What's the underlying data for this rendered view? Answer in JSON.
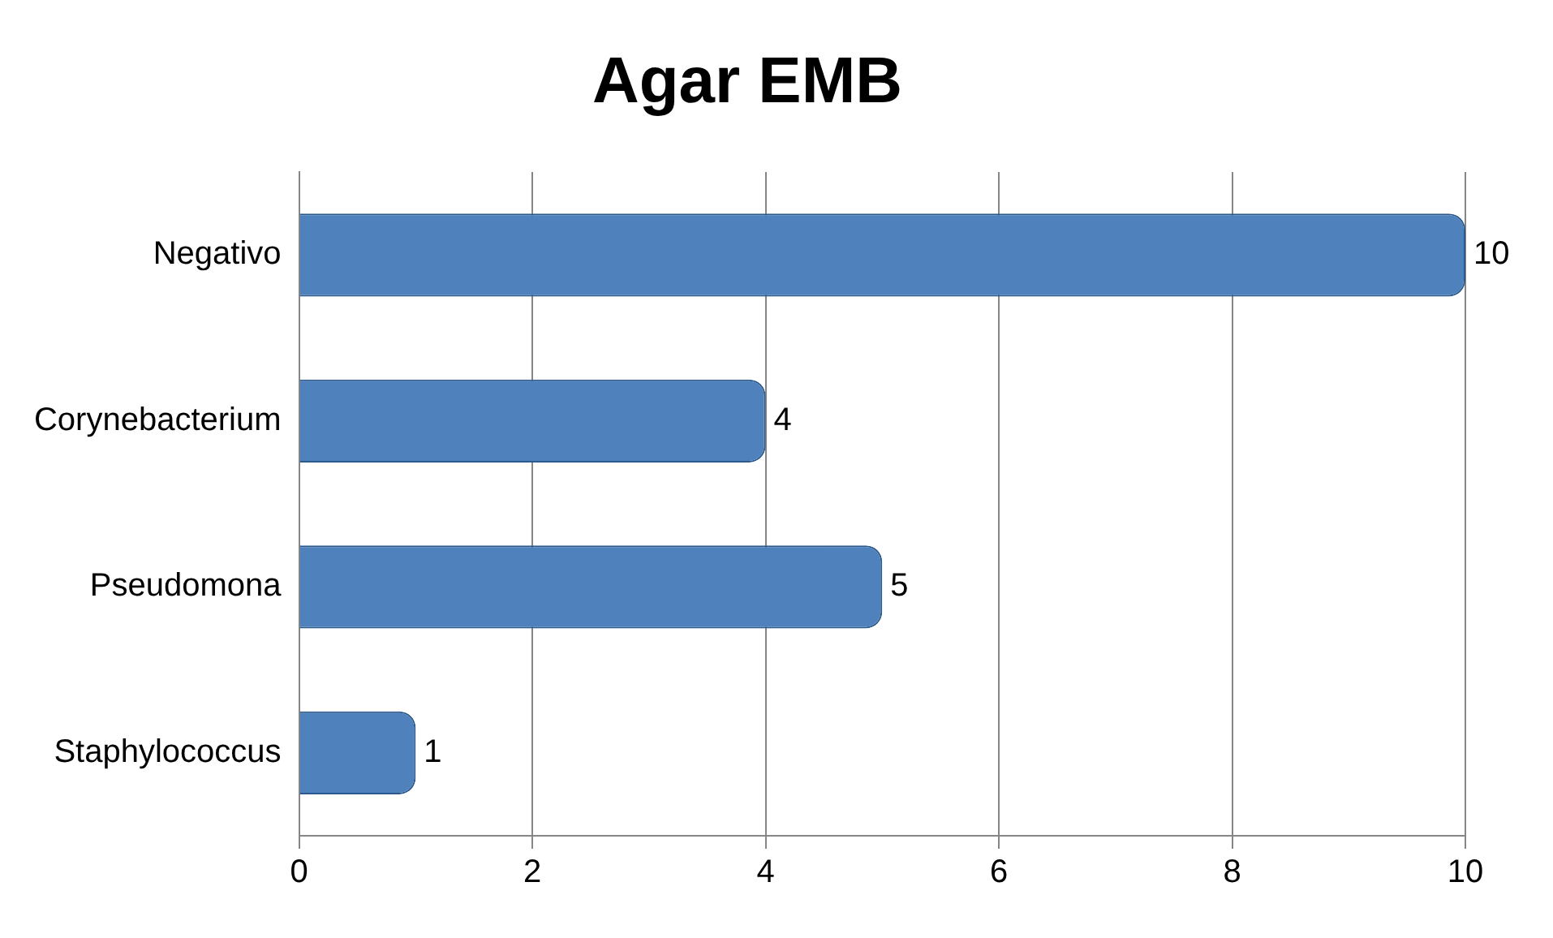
{
  "chart_data": {
    "type": "bar",
    "title": "Agar EMB",
    "orientation": "horizontal",
    "categories": [
      "Negativo",
      "Corynebacterium",
      "Pseudomona",
      "Staphylococcus"
    ],
    "values": [
      10,
      4,
      5,
      1
    ],
    "color": "#4f81bd",
    "xlim": [
      0,
      10
    ],
    "xticks": [
      0,
      2,
      4,
      6,
      8,
      10
    ],
    "grid": "x",
    "data_labels": true,
    "legend": false
  }
}
